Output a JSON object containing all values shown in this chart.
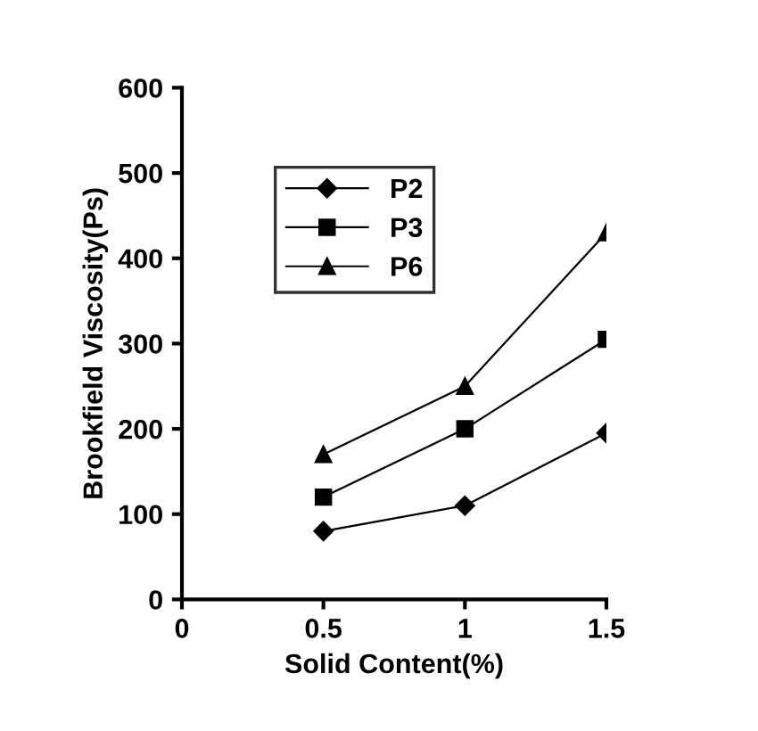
{
  "chart_data": {
    "type": "line",
    "xlabel": "Solid Content(%)",
    "ylabel": "Brookfield Viscosity(Ps)",
    "x": [
      0.5,
      1,
      1.5
    ],
    "series": [
      {
        "name": "P2",
        "color": "#000000",
        "marker": "diamond",
        "values": [
          80,
          110,
          195
        ]
      },
      {
        "name": "P3",
        "color": "#000000",
        "marker": "square",
        "values": [
          120,
          200,
          305
        ]
      },
      {
        "name": "P6",
        "color": "#000000",
        "marker": "triangle",
        "values": [
          170,
          250,
          430
        ]
      }
    ],
    "xlim": [
      0,
      1.5
    ],
    "xticks": [
      0,
      0.5,
      1,
      1.5
    ],
    "ylim": [
      0,
      600
    ],
    "yticks": [
      0,
      100,
      200,
      300,
      400,
      500,
      600
    ],
    "grid": false,
    "legend": "top left",
    "line_style": "solid"
  }
}
